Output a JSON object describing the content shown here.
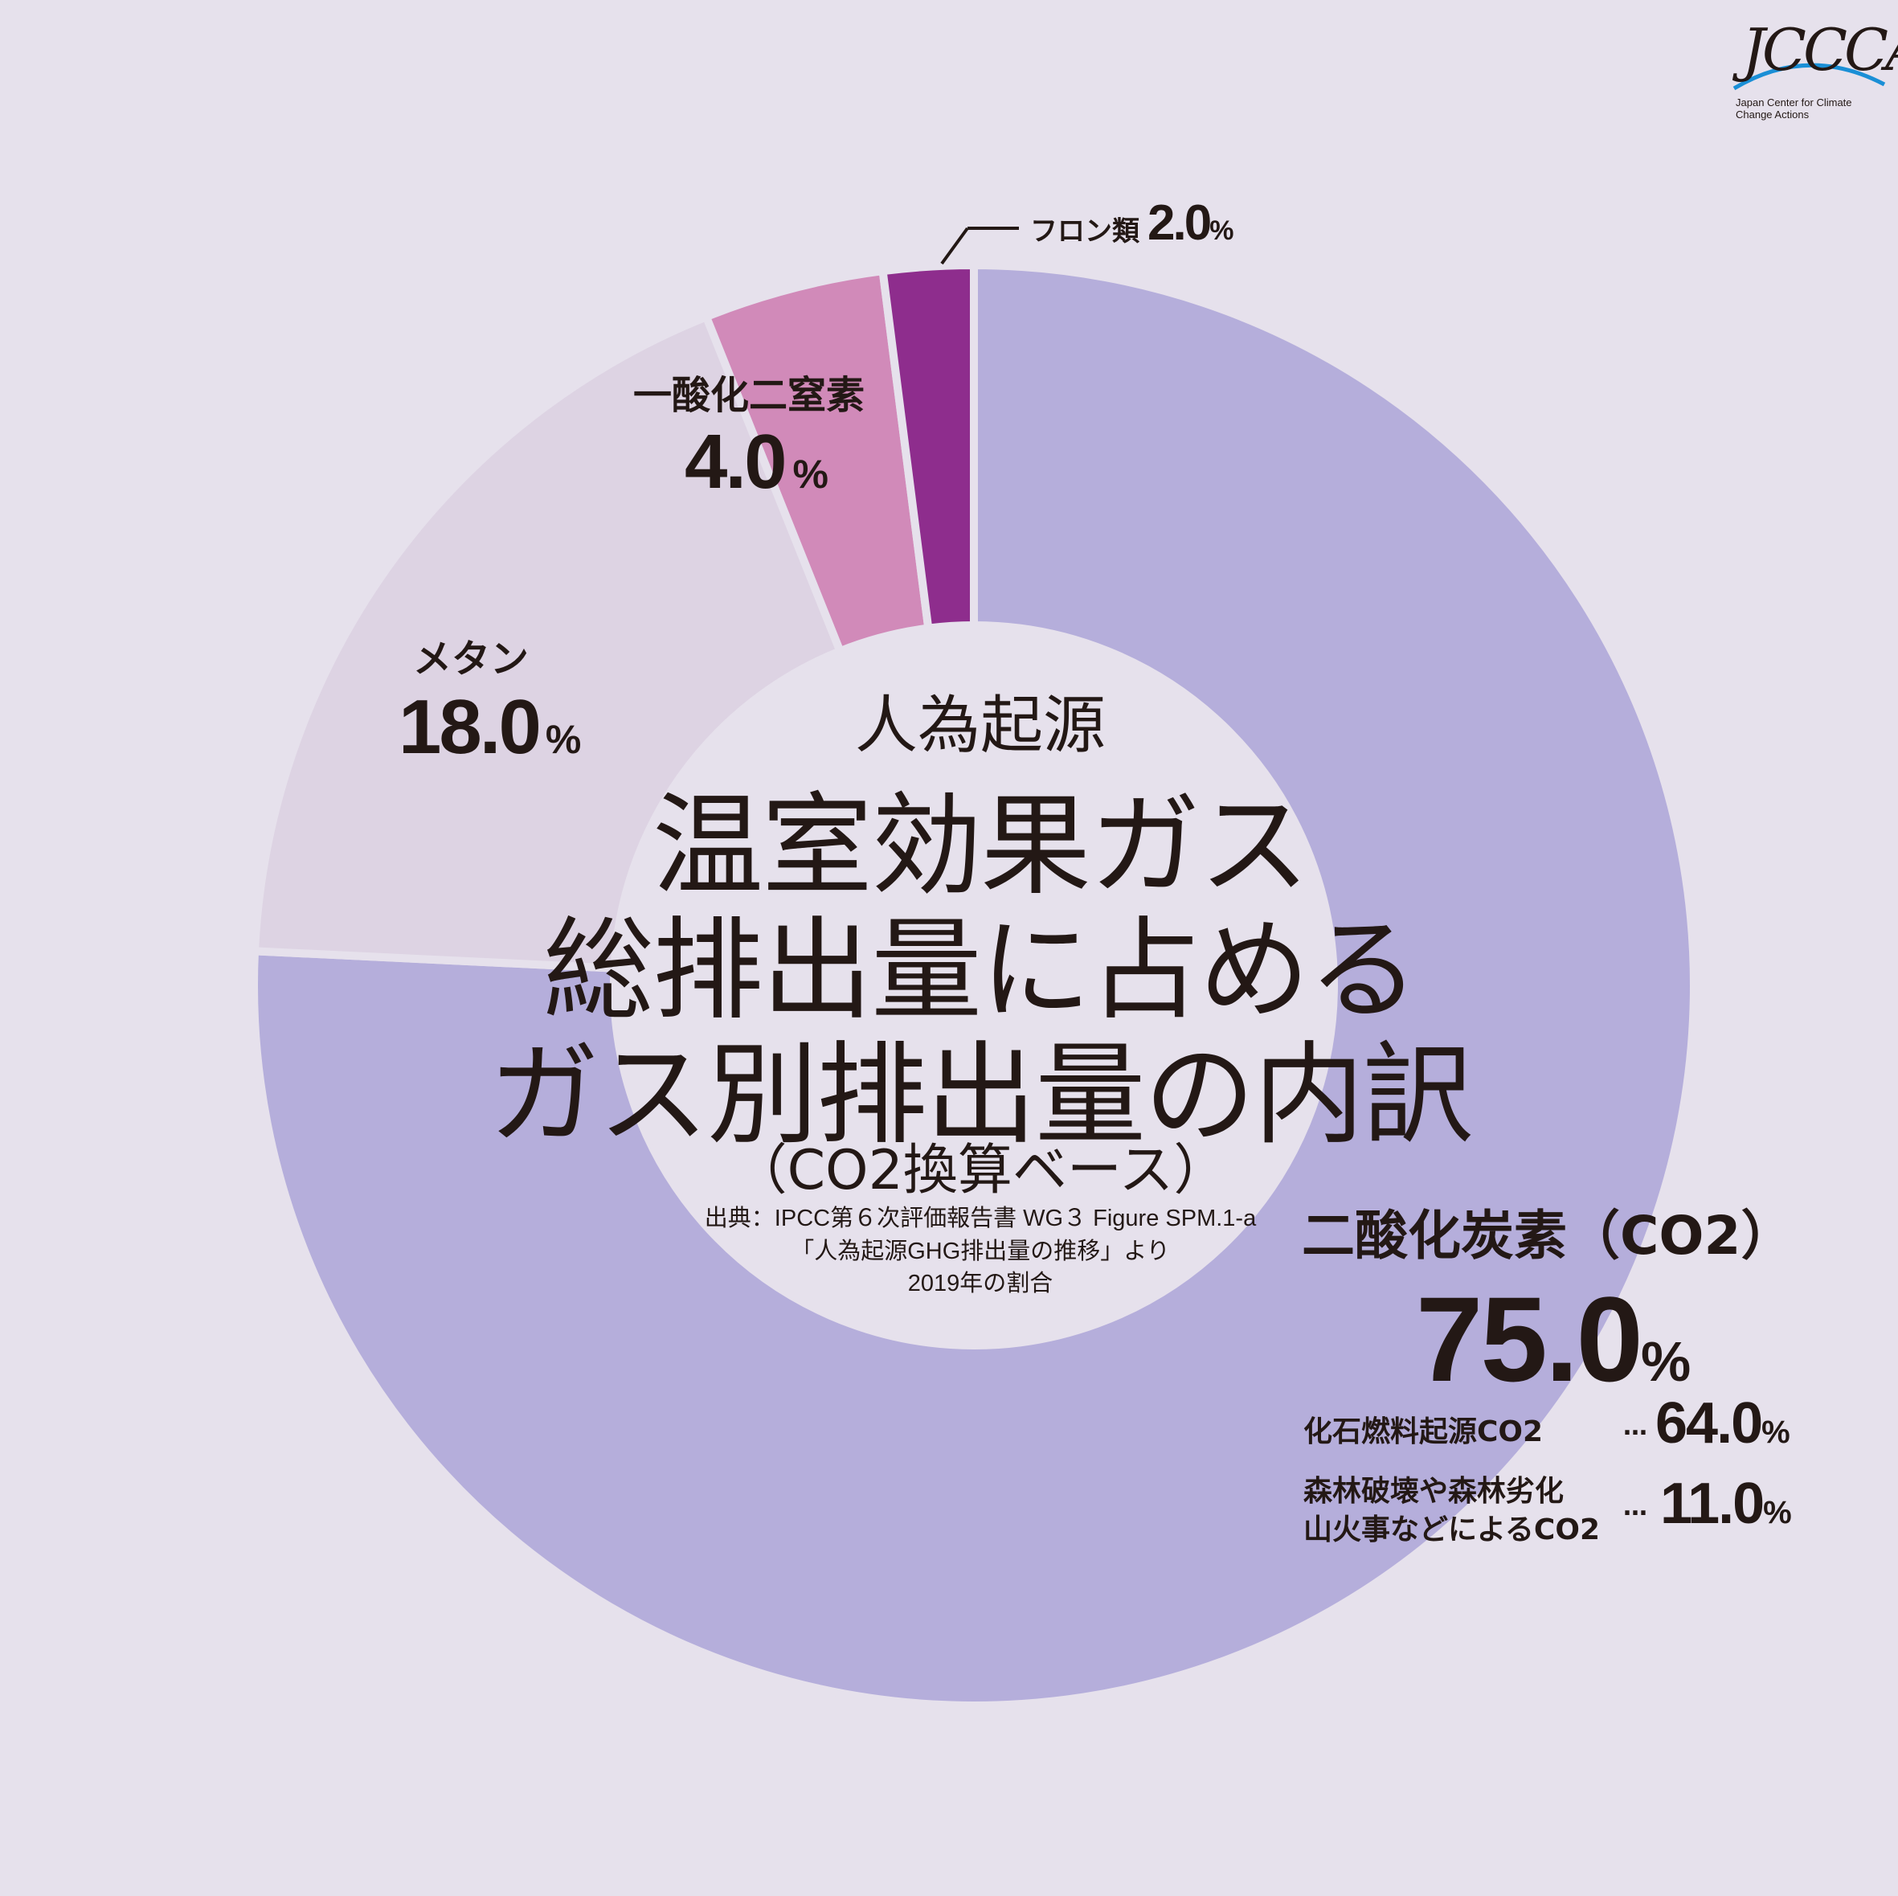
{
  "chart_data": {
    "type": "pie",
    "variant": "donut",
    "title_lines": [
      "人為起源",
      "温室効果ガス",
      "総排出量に占める",
      "ガス別排出量の内訳"
    ],
    "basis": "（CO2換算ベース）",
    "source_lines": [
      "出典：IPCC第６次評価報告書 WG３ Figure SPM.1-a",
      "「人為起源GHG排出量の推移」より",
      "2019年の割合"
    ],
    "slices": [
      {
        "name": "二酸化炭素（CO2）",
        "value": 75.0,
        "color": "#b5aedb"
      },
      {
        "name": "メタン",
        "value": 18.0,
        "color": "#ddd3e3"
      },
      {
        "name": "一酸化二窒素",
        "value": 4.0,
        "color": "#d18ab9"
      },
      {
        "name": "フロン類",
        "value": 2.0,
        "color": "#8e2d8d"
      }
    ],
    "co2_breakdown": [
      {
        "name": "化石燃料起源CO2",
        "value": 64.0
      },
      {
        "name_lines": [
          "森林破壊や森林劣化",
          "山火事などによるCO2"
        ],
        "value": 11.0
      }
    ]
  },
  "labels": {
    "co2_name": "二酸化炭素（CO2）",
    "co2_value": "75.0",
    "ch4_name": "メタン",
    "ch4_value": "18.0",
    "n2o_name": "一酸化二窒素",
    "n2o_value": "4.0",
    "freon_name": "フロン類",
    "freon_value": "2.0",
    "percent": "%",
    "sub1_name": "化石燃料起源CO2",
    "sub1_value": "64.0",
    "sub2_name_line1": "森林破壊や森林劣化",
    "sub2_name_line2": "山火事などによるCO2",
    "sub2_value": "11.0",
    "dots": "…"
  },
  "logo": {
    "text": "JCCCA",
    "subtitle": "Japan Center for Climate Change Actions"
  },
  "colors": {
    "background": "#e6e1ec",
    "text": "#231815",
    "logo_arc": "#1a8fd6"
  }
}
